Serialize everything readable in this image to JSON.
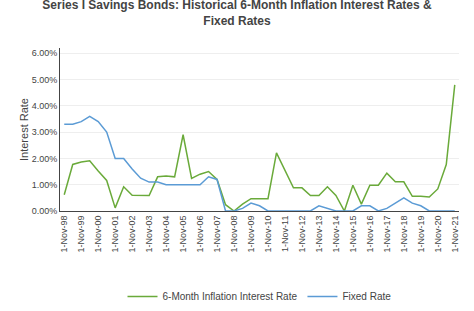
{
  "chart_data": {
    "type": "line",
    "title": "Series I Savings Bonds: Historical 6-Month Inflation Interest Rates &\nFixed Rates",
    "y_label": "Interest Rate",
    "categories": [
      "1-Nov-98",
      null,
      "1-Nov-99",
      null,
      "1-Nov-00",
      null,
      "1-Nov-01",
      null,
      "1-Nov-02",
      null,
      "1-Nov-03",
      null,
      "1-Nov-04",
      null,
      "1-Nov-05",
      null,
      "1-Nov-06",
      null,
      "1-Nov-07",
      null,
      "1-Nov-08",
      null,
      "1-Nov-09",
      null,
      "1-Nov-10",
      null,
      "1-Nov-11",
      null,
      "1-Nov-12",
      null,
      "1-Nov-13",
      null,
      "1-Nov-14",
      null,
      "1-Nov-15",
      null,
      "1-Nov-16",
      null,
      "1-Nov-17",
      null,
      "1-Nov-18",
      null,
      "1-Nov-19",
      null,
      "1-Nov-20",
      null,
      "1-Nov-21"
    ],
    "series": [
      {
        "name": "6-Month Inflation Interest Rate",
        "color": "#6aaa3a",
        "values": [
          0.0062,
          0.0177,
          0.0186,
          0.0191,
          0.0152,
          0.0116,
          0.0012,
          0.0092,
          0.006,
          0.0059,
          0.0059,
          0.013,
          0.0133,
          0.013,
          0.029,
          0.0124,
          0.014,
          0.015,
          0.012,
          0.0024,
          0.0,
          0.0026,
          0.0047,
          0.0047,
          0.0047,
          0.0221,
          0.0155,
          0.0088,
          0.0088,
          0.0059,
          0.0059,
          0.0092,
          0.0059,
          0.0,
          0.0098,
          0.0026,
          0.0098,
          0.0098,
          0.0144,
          0.0111,
          0.0111,
          0.0056,
          0.0056,
          0.0053,
          0.0084,
          0.0177,
          0.048
        ]
      },
      {
        "name": "Fixed Rate",
        "color": "#5b9bd5",
        "values": [
          0.033,
          0.033,
          0.034,
          0.036,
          0.034,
          0.03,
          0.02,
          0.02,
          0.016,
          0.0125,
          0.011,
          0.011,
          0.01,
          0.01,
          0.01,
          0.01,
          0.01,
          0.013,
          0.012,
          0.0,
          0.0,
          0.001,
          0.003,
          0.002,
          0.0,
          0.0,
          0.0,
          0.0,
          0.0,
          0.0,
          0.002,
          0.001,
          0.0,
          0.0,
          0.0,
          0.002,
          0.002,
          0.0,
          0.001,
          0.003,
          0.005,
          0.003,
          0.002,
          0.0,
          0.0,
          0.0,
          0.0
        ]
      }
    ],
    "ylim": [
      0.0,
      0.062
    ],
    "yticks": [
      {
        "value": 0.0,
        "label": "0.00%"
      },
      {
        "value": 0.01,
        "label": "1.00%"
      },
      {
        "value": 0.02,
        "label": "2.00%"
      },
      {
        "value": 0.03,
        "label": "3.00%"
      },
      {
        "value": 0.04,
        "label": "4.00%"
      },
      {
        "value": 0.05,
        "label": "5.00%"
      },
      {
        "value": 0.06,
        "label": "6.00%"
      }
    ],
    "grid": true,
    "legend": "bottom"
  }
}
